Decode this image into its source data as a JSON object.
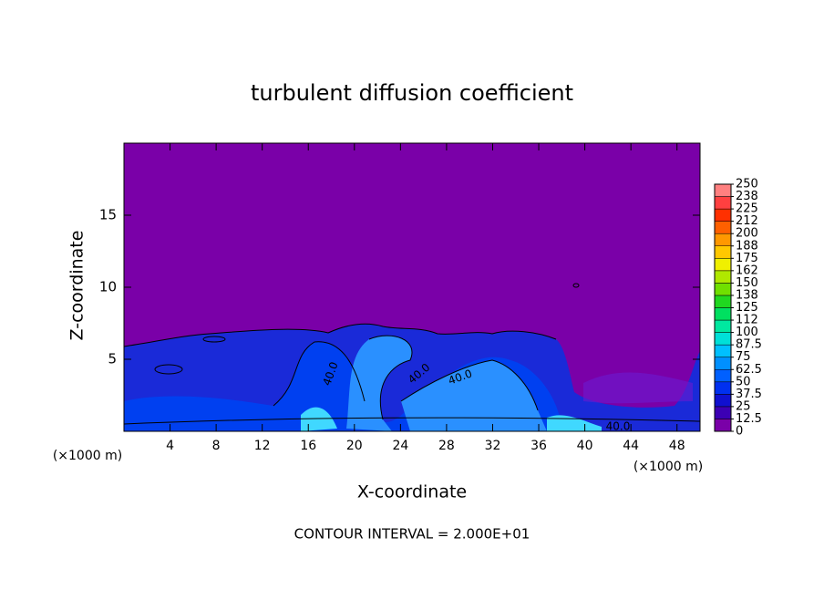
{
  "chart_data": {
    "type": "contour",
    "title": "turbulent diffusion coefficient",
    "xlabel": "X-coordinate",
    "ylabel": "Z-coordinate",
    "x_unit": "(×1000 m)",
    "footer": "CONTOUR INTERVAL = 2.000E+01",
    "xlim": [
      0,
      50
    ],
    "xticks": [
      4,
      8,
      12,
      16,
      20,
      24,
      28,
      32,
      36,
      40,
      44,
      48
    ],
    "ylim": [
      0,
      20
    ],
    "yticks": [
      5,
      10,
      15
    ],
    "colorbar": {
      "levels": [
        0,
        12.5,
        25,
        37.5,
        50,
        62.5,
        75,
        87.5,
        100,
        {
          "value": 112.5,
          "label": "112"
        },
        125,
        {
          "value": 137.5,
          "label": "138"
        },
        150,
        {
          "value": 162.5,
          "label": "162"
        },
        175,
        {
          "value": 187.5,
          "label": "188"
        },
        200,
        {
          "value": 212.5,
          "label": "212"
        },
        225,
        {
          "value": 237.5,
          "label": "238"
        },
        250
      ],
      "colors": [
        "#7a00a8",
        "#3c00b4",
        "#1010d0",
        "#0030f0",
        "#0060ff",
        "#0090ff",
        "#00c0ff",
        "#00e0d8",
        "#00e8a0",
        "#00e060",
        "#20d820",
        "#70e000",
        "#b0e800",
        "#f0f000",
        "#ffc800",
        "#ff9800",
        "#ff6000",
        "#ff3000",
        "#ff4040",
        "#ff8080"
      ]
    },
    "contour_labels": [
      {
        "value": 40,
        "label": "40.0"
      },
      {
        "value": 40,
        "label": "40.0"
      },
      {
        "value": 40,
        "label": "40.0"
      },
      {
        "value": 40,
        "label": "40.0"
      }
    ]
  }
}
